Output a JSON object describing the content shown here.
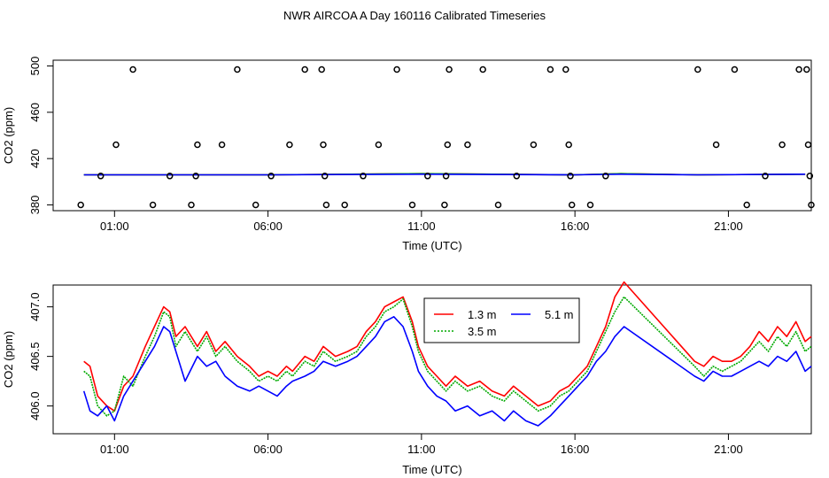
{
  "title": "NWR AIRCOA A  Day 160116  Calibrated Timeseries",
  "chart_data": [
    {
      "type": "scatter",
      "xlabel": "Time (UTC)",
      "ylabel": "CO2 (ppm)",
      "xlim": [
        -1.0,
        23.7
      ],
      "ylim": [
        375,
        505
      ],
      "x_ticks": [
        1,
        6,
        11,
        16,
        21
      ],
      "x_tick_labels": [
        "01:00",
        "06:00",
        "11:00",
        "16:00",
        "21:00"
      ],
      "y_ticks": [
        380,
        420,
        460,
        500
      ],
      "y_tick_labels": [
        "380",
        "420",
        "460",
        "500"
      ],
      "points": {
        "x": [
          -0.1,
          0.55,
          1.05,
          1.6,
          2.25,
          2.8,
          3.5,
          3.65,
          3.7,
          4.5,
          5.0,
          5.6,
          6.1,
          6.7,
          7.2,
          7.75,
          7.8,
          7.85,
          7.9,
          8.5,
          9.1,
          9.6,
          10.2,
          10.7,
          11.2,
          11.75,
          11.8,
          11.85,
          11.9,
          12.5,
          13.0,
          13.5,
          14.1,
          14.65,
          15.2,
          15.7,
          15.8,
          15.85,
          15.9,
          16.5,
          17.0,
          20.0,
          20.6,
          21.2,
          21.6,
          22.2,
          22.75,
          23.3,
          23.55,
          23.6,
          23.65,
          23.7
        ],
        "y": [
          380,
          405,
          432,
          497,
          380,
          405,
          380,
          405,
          432,
          432,
          497,
          380,
          405,
          432,
          497,
          497,
          432,
          405,
          380,
          380,
          405,
          432,
          497,
          380,
          405,
          380,
          405,
          432,
          497,
          432,
          497,
          380,
          405,
          432,
          497,
          497,
          432,
          405,
          380,
          380,
          405,
          497,
          432,
          497,
          380,
          405,
          432,
          497,
          497,
          432,
          405,
          380
        ]
      },
      "series": [
        {
          "name": "1.3 m",
          "color": "#ff0000",
          "x": [
            0,
            6,
            11,
            16,
            17.5,
            20,
            23.5
          ],
          "y": [
            406,
            406,
            407,
            406,
            407,
            406,
            406.5
          ]
        },
        {
          "name": "3.5 m",
          "color": "#00aa00",
          "x": [
            0,
            6,
            11,
            16,
            17.5,
            20,
            23.5
          ],
          "y": [
            406,
            406,
            407,
            406,
            407,
            406,
            406.5
          ]
        },
        {
          "name": "5.1 m",
          "color": "#0000ff",
          "x": [
            0,
            6,
            11,
            16,
            17.5,
            20,
            23.5
          ],
          "y": [
            406,
            406,
            406.5,
            406,
            406.5,
            406,
            406.5
          ]
        }
      ]
    },
    {
      "type": "line",
      "xlabel": "Time (UTC)",
      "ylabel": "CO2 (ppm)",
      "xlim": [
        -1.0,
        23.7
      ],
      "ylim": [
        405.72,
        407.22
      ],
      "x_ticks": [
        1,
        6,
        11,
        16,
        21
      ],
      "x_tick_labels": [
        "01:00",
        "06:00",
        "11:00",
        "16:00",
        "21:00"
      ],
      "y_ticks": [
        406.0,
        406.5,
        407.0
      ],
      "y_tick_labels": [
        "406.0",
        "406.5",
        "407.0"
      ],
      "legend": {
        "position": "top-center",
        "entries": [
          {
            "label": "1.3 m",
            "color": "#ff0000",
            "style": "solid"
          },
          {
            "label": "5.1 m",
            "color": "#0000ff",
            "style": "solid"
          },
          {
            "label": "3.5 m",
            "color": "#00aa00",
            "style": "dotted"
          }
        ]
      },
      "series": [
        {
          "name": "1.3 m",
          "color": "#ff0000",
          "x": [
            0,
            0.2,
            0.45,
            0.75,
            1.0,
            1.3,
            1.6,
            2.0,
            2.3,
            2.6,
            2.8,
            3.0,
            3.3,
            3.7,
            4.0,
            4.3,
            4.6,
            5.0,
            5.4,
            5.7,
            6.0,
            6.3,
            6.6,
            6.8,
            7.2,
            7.5,
            7.8,
            8.2,
            8.6,
            8.9,
            9.2,
            9.5,
            9.8,
            10.1,
            10.4,
            10.7,
            10.9,
            11.2,
            11.5,
            11.8,
            12.1,
            12.5,
            12.9,
            13.3,
            13.7,
            14.0,
            14.4,
            14.8,
            15.2,
            15.5,
            15.8,
            16.1,
            16.4,
            16.7,
            17.0,
            17.3,
            17.6,
            19.9,
            20.2,
            20.5,
            20.8,
            21.1,
            21.4,
            21.7,
            22.0,
            22.3,
            22.6,
            22.9,
            23.2,
            23.5,
            23.7
          ],
          "y": [
            406.45,
            406.4,
            406.1,
            406.0,
            405.95,
            406.2,
            406.3,
            406.6,
            406.8,
            407.0,
            406.95,
            406.7,
            406.8,
            406.6,
            406.75,
            406.55,
            406.65,
            406.5,
            406.4,
            406.3,
            406.35,
            406.3,
            406.4,
            406.35,
            406.5,
            406.45,
            406.6,
            406.5,
            406.55,
            406.6,
            406.75,
            406.85,
            407.0,
            407.05,
            407.1,
            406.85,
            406.6,
            406.4,
            406.3,
            406.2,
            406.3,
            406.2,
            406.25,
            406.15,
            406.1,
            406.2,
            406.1,
            406.0,
            406.05,
            406.15,
            406.2,
            406.3,
            406.4,
            406.6,
            406.8,
            407.1,
            407.25,
            406.45,
            406.4,
            406.5,
            406.45,
            406.45,
            406.5,
            406.6,
            406.75,
            406.65,
            406.8,
            406.7,
            406.85,
            406.65,
            406.7
          ]
        },
        {
          "name": "3.5 m",
          "color": "#00aa00",
          "x": [
            0,
            0.2,
            0.45,
            0.75,
            1.0,
            1.3,
            1.6,
            2.0,
            2.3,
            2.6,
            2.8,
            3.0,
            3.3,
            3.7,
            4.0,
            4.3,
            4.6,
            5.0,
            5.4,
            5.7,
            6.0,
            6.3,
            6.6,
            6.8,
            7.2,
            7.5,
            7.8,
            8.2,
            8.6,
            8.9,
            9.2,
            9.5,
            9.8,
            10.1,
            10.4,
            10.7,
            10.9,
            11.2,
            11.5,
            11.8,
            12.1,
            12.5,
            12.9,
            13.3,
            13.7,
            14.0,
            14.4,
            14.8,
            15.2,
            15.5,
            15.8,
            16.1,
            16.4,
            16.7,
            17.0,
            17.3,
            17.6,
            19.9,
            20.2,
            20.5,
            20.8,
            21.1,
            21.4,
            21.7,
            22.0,
            22.3,
            22.6,
            22.9,
            23.2,
            23.5,
            23.7
          ],
          "y": [
            406.35,
            406.3,
            406.0,
            405.9,
            405.95,
            406.3,
            406.2,
            406.5,
            406.7,
            406.95,
            406.9,
            406.6,
            406.75,
            406.55,
            406.7,
            406.5,
            406.6,
            406.45,
            406.35,
            406.25,
            406.3,
            406.25,
            406.35,
            406.3,
            406.45,
            406.4,
            406.55,
            406.45,
            406.5,
            406.55,
            406.7,
            406.8,
            406.95,
            407.0,
            407.08,
            406.8,
            406.55,
            406.35,
            406.25,
            406.15,
            406.25,
            406.15,
            406.2,
            406.1,
            406.05,
            406.15,
            406.05,
            405.95,
            406.0,
            406.1,
            406.15,
            406.25,
            406.35,
            406.55,
            406.75,
            406.95,
            407.1,
            406.4,
            406.3,
            406.4,
            406.35,
            406.4,
            406.45,
            406.55,
            406.65,
            406.55,
            406.7,
            406.6,
            406.75,
            406.55,
            406.6
          ]
        },
        {
          "name": "5.1 m",
          "color": "#0000ff",
          "x": [
            0,
            0.2,
            0.45,
            0.75,
            1.0,
            1.3,
            1.6,
            2.0,
            2.3,
            2.6,
            2.8,
            3.0,
            3.3,
            3.7,
            4.0,
            4.3,
            4.6,
            5.0,
            5.4,
            5.7,
            6.0,
            6.3,
            6.6,
            6.8,
            7.2,
            7.5,
            7.8,
            8.2,
            8.6,
            8.9,
            9.2,
            9.5,
            9.8,
            10.1,
            10.4,
            10.7,
            10.9,
            11.2,
            11.5,
            11.8,
            12.1,
            12.5,
            12.9,
            13.3,
            13.7,
            14.0,
            14.4,
            14.8,
            15.2,
            15.5,
            15.8,
            16.1,
            16.4,
            16.7,
            17.0,
            17.3,
            17.6,
            19.9,
            20.2,
            20.5,
            20.8,
            21.1,
            21.4,
            21.7,
            22.0,
            22.3,
            22.6,
            22.9,
            23.2,
            23.5,
            23.7
          ],
          "y": [
            406.15,
            405.95,
            405.9,
            406.0,
            405.85,
            406.1,
            406.25,
            406.45,
            406.6,
            406.8,
            406.75,
            406.55,
            406.25,
            406.5,
            406.4,
            406.45,
            406.3,
            406.2,
            406.15,
            406.2,
            406.15,
            406.1,
            406.2,
            406.25,
            406.3,
            406.35,
            406.45,
            406.4,
            406.45,
            406.5,
            406.6,
            406.7,
            406.85,
            406.9,
            406.8,
            406.55,
            406.35,
            406.2,
            406.1,
            406.05,
            405.95,
            406.0,
            405.9,
            405.95,
            405.85,
            405.95,
            405.85,
            405.8,
            405.9,
            406.0,
            406.1,
            406.2,
            406.3,
            406.45,
            406.55,
            406.7,
            406.8,
            406.3,
            406.25,
            406.35,
            406.3,
            406.3,
            406.35,
            406.4,
            406.45,
            406.4,
            406.5,
            406.45,
            406.55,
            406.35,
            406.4
          ]
        }
      ]
    }
  ]
}
